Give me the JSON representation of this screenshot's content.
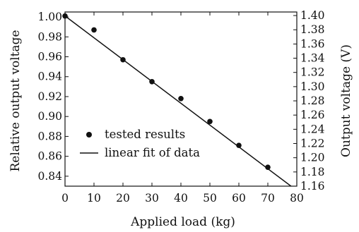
{
  "chart_data": {
    "type": "scatter",
    "xlabel": "Applied load (kg)",
    "ylabel": "Relative output voltage",
    "y2label": "Output voltage (V)",
    "xlim": [
      0,
      80
    ],
    "ylim": [
      0.83,
      1.005
    ],
    "y2lim": [
      1.16,
      1.405
    ],
    "grid": false,
    "legend_position": "lower-left",
    "x_ticks": [
      "0",
      "10",
      "20",
      "30",
      "40",
      "50",
      "60",
      "70",
      "80"
    ],
    "y_ticks": [
      "1.00",
      "0.98",
      "0.96",
      "0.94",
      "0.92",
      "0.90",
      "0.88",
      "0.86",
      "0.84"
    ],
    "y2_ticks": [
      "1.40",
      "1.38",
      "1.36",
      "1.34",
      "1.32",
      "1.30",
      "1.28",
      "1.26",
      "1.24",
      "1.22",
      "1.20",
      "1.18",
      "1.16"
    ],
    "series": [
      {
        "name": "tested results",
        "kind": "scatter",
        "x": [
          0,
          10,
          20,
          30,
          40,
          50,
          60,
          70
        ],
        "y": [
          1.001,
          0.987,
          0.957,
          0.935,
          0.918,
          0.895,
          0.871,
          0.849
        ]
      },
      {
        "name": "linear fit of data",
        "kind": "line",
        "x": [
          0,
          78
        ],
        "y": [
          1.001,
          0.83
        ]
      }
    ]
  }
}
